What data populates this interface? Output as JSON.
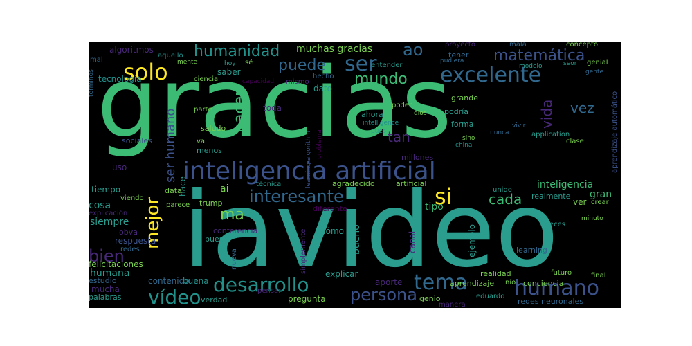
{
  "palette": {
    "background": "#000000",
    "page": "#ffffff",
    "green": "#3cbb75",
    "teal": "#2a9d8f",
    "cyan": "#21918c",
    "blue": "#3b528b",
    "navy": "#31688e",
    "purple": "#482878",
    "deep": "#440154",
    "lime": "#7ad151",
    "yellow": "#fde725"
  },
  "words": [
    {
      "text": "gracias",
      "color": "green"
    },
    {
      "text": "iavideo",
      "color": "teal"
    },
    {
      "text": "inteligencia artificial",
      "color": "blue"
    },
    {
      "text": "excelente",
      "color": "navy"
    },
    {
      "text": "humano",
      "color": "blue"
    },
    {
      "text": "solo",
      "color": "yellow"
    },
    {
      "text": "si",
      "color": "yellow"
    },
    {
      "text": "mejor",
      "color": "yellow"
    },
    {
      "text": "ser",
      "color": "navy"
    },
    {
      "text": "tema",
      "color": "navy"
    },
    {
      "text": "desarrollo",
      "color": "cyan"
    },
    {
      "text": "persona",
      "color": "blue"
    },
    {
      "text": "vídeo",
      "color": "cyan"
    },
    {
      "text": "interesante",
      "color": "navy"
    },
    {
      "text": "mundo",
      "color": "green"
    },
    {
      "text": "puede",
      "color": "navy"
    },
    {
      "text": "humanidad",
      "color": "cyan"
    },
    {
      "text": "matemática",
      "color": "blue"
    },
    {
      "text": "muchas gracias",
      "color": "lime"
    },
    {
      "text": "ao",
      "color": "navy"
    },
    {
      "text": "hacer",
      "color": "green"
    },
    {
      "text": "ser humano",
      "color": "blue"
    },
    {
      "text": "bien",
      "color": "purple"
    },
    {
      "text": "cada",
      "color": "green"
    },
    {
      "text": "ma",
      "color": "lime"
    },
    {
      "text": "vida",
      "color": "purple"
    },
    {
      "text": "vez",
      "color": "navy"
    },
    {
      "text": "tan",
      "color": "purple"
    },
    {
      "text": "algoritmos",
      "color": "purple"
    },
    {
      "text": "tecnología",
      "color": "cyan"
    },
    {
      "text": "aquello",
      "color": "cyan"
    },
    {
      "text": "mente",
      "color": "lime"
    },
    {
      "text": "hoy",
      "color": "teal"
    },
    {
      "text": "sé",
      "color": "lime"
    },
    {
      "text": "saber",
      "color": "teal"
    },
    {
      "text": "ciencia",
      "color": "lime"
    },
    {
      "text": "capacidad",
      "color": "deep"
    },
    {
      "text": "mismo",
      "color": "purple"
    },
    {
      "text": "hecho",
      "color": "navy"
    },
    {
      "text": "entender",
      "color": "teal"
    },
    {
      "text": "tener",
      "color": "navy"
    },
    {
      "text": "proyecto",
      "color": "purple"
    },
    {
      "text": "mala",
      "color": "navy"
    },
    {
      "text": "concepto",
      "color": "lime"
    },
    {
      "text": "pudiera",
      "color": "navy"
    },
    {
      "text": "modelo",
      "color": "teal"
    },
    {
      "text": "seor",
      "color": "teal"
    },
    {
      "text": "gente",
      "color": "navy"
    },
    {
      "text": "genial",
      "color": "lime"
    },
    {
      "text": "dato",
      "color": "teal"
    },
    {
      "text": "toda",
      "color": "purple"
    },
    {
      "text": "parte",
      "color": "lime"
    },
    {
      "text": "saludo",
      "color": "lime"
    },
    {
      "text": "menos",
      "color": "teal"
    },
    {
      "text": "poder",
      "color": "lime"
    },
    {
      "text": "ahora",
      "color": "teal"
    },
    {
      "text": "intelligence",
      "color": "cyan"
    },
    {
      "text": "pues",
      "color": "teal"
    },
    {
      "text": "dios",
      "color": "lime"
    },
    {
      "text": "podría",
      "color": "teal"
    },
    {
      "text": "forma",
      "color": "teal"
    },
    {
      "text": "grande",
      "color": "lime"
    },
    {
      "text": "futuro",
      "color": "lime"
    },
    {
      "text": "nunca",
      "color": "navy"
    },
    {
      "text": "vivir",
      "color": "navy"
    },
    {
      "text": "application",
      "color": "teal"
    },
    {
      "text": "sino",
      "color": "lime"
    },
    {
      "text": "china",
      "color": "cyan"
    },
    {
      "text": "clase",
      "color": "lime"
    },
    {
      "text": "millones",
      "color": "purple"
    },
    {
      "text": "sociales",
      "color": "blue"
    },
    {
      "text": "va",
      "color": "lime"
    },
    {
      "text": "hace",
      "color": "teal"
    },
    {
      "text": "uso",
      "color": "purple"
    },
    {
      "text": "tiempo",
      "color": "teal"
    },
    {
      "text": "data",
      "color": "lime"
    },
    {
      "text": "ai",
      "color": "lime"
    },
    {
      "text": "técnica",
      "color": "teal"
    },
    {
      "text": "agradecido",
      "color": "lime"
    },
    {
      "text": "artificial",
      "color": "lime"
    },
    {
      "text": "inteligencia",
      "color": "green"
    },
    {
      "text": "gran",
      "color": "green"
    },
    {
      "text": "cosa",
      "color": "teal"
    },
    {
      "text": "viendo",
      "color": "lime"
    },
    {
      "text": "trump",
      "color": "lime"
    },
    {
      "text": "parece",
      "color": "lime"
    },
    {
      "text": "diferente",
      "color": "deep"
    },
    {
      "text": "tipo",
      "color": "green"
    },
    {
      "text": "unido",
      "color": "teal"
    },
    {
      "text": "realmente",
      "color": "teal"
    },
    {
      "text": "ver",
      "color": "lime"
    },
    {
      "text": "crear",
      "color": "lime"
    },
    {
      "text": "veces",
      "color": "teal"
    },
    {
      "text": "siempre",
      "color": "teal"
    },
    {
      "text": "explicación",
      "color": "purple"
    },
    {
      "text": "respuesta",
      "color": "blue"
    },
    {
      "text": "conferencia",
      "color": "purple"
    },
    {
      "text": "buen",
      "color": "teal"
    },
    {
      "text": "bueno",
      "color": "teal"
    },
    {
      "text": "canal",
      "color": "purple"
    },
    {
      "text": "ejemplo",
      "color": "teal"
    },
    {
      "text": "learning",
      "color": "navy"
    },
    {
      "text": "redes",
      "color": "navy"
    },
    {
      "text": "nueva",
      "color": "navy"
    },
    {
      "text": "simplemente",
      "color": "purple"
    },
    {
      "text": "cómo",
      "color": "teal"
    },
    {
      "text": "felicitaciones",
      "color": "lime"
    },
    {
      "text": "humana",
      "color": "teal"
    },
    {
      "text": "estudio",
      "color": "navy"
    },
    {
      "text": "mucha",
      "color": "purple"
    },
    {
      "text": "contenido",
      "color": "navy"
    },
    {
      "text": "buena",
      "color": "cyan"
    },
    {
      "text": "verdad",
      "color": "teal"
    },
    {
      "text": "explicar",
      "color": "teal"
    },
    {
      "text": "aporte",
      "color": "purple"
    },
    {
      "text": "pregunta",
      "color": "lime"
    },
    {
      "text": "genio",
      "color": "lime"
    },
    {
      "text": "eduardo",
      "color": "teal"
    },
    {
      "text": "realidad",
      "color": "lime"
    },
    {
      "text": "aprendizaje",
      "color": "lime"
    },
    {
      "text": "nio",
      "color": "lime"
    },
    {
      "text": "conciencia",
      "color": "lime"
    },
    {
      "text": "final",
      "color": "lime"
    },
    {
      "text": "redes neuronales",
      "color": "navy"
    },
    {
      "text": "palabras",
      "color": "teal"
    },
    {
      "text": "pensar",
      "color": "purple"
    },
    {
      "text": "manera",
      "color": "purple"
    },
    {
      "text": "minuto",
      "color": "lime"
    },
    {
      "text": "términos",
      "color": "navy"
    },
    {
      "text": "aprendizaje automático",
      "color": "blue"
    },
    {
      "text": "learning algorithm",
      "color": "blue"
    },
    {
      "text": "problema",
      "color": "deep"
    },
    {
      "text": "mal",
      "color": "navy"
    },
    {
      "text": "obva",
      "color": "purple"
    }
  ]
}
